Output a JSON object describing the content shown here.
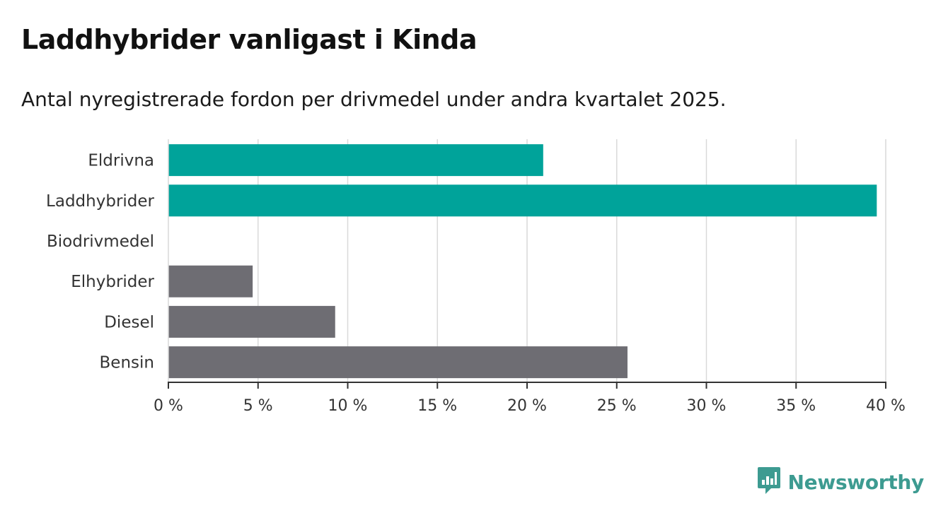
{
  "title": "Laddhybrider vanligast i Kinda",
  "subtitle": "Antal nyregistrerade fordon per drivmedel under andra kvartalet 2025.",
  "brand": {
    "name": "Newsworthy",
    "icon": "newsworthy-logo-icon",
    "color": "#3d9b91"
  },
  "colors": {
    "highlight": "#00a39a",
    "other": "#6e6d73",
    "grid": "#d9d9d9",
    "axis": "#333333"
  },
  "chart_data": {
    "type": "bar",
    "orientation": "horizontal",
    "categories": [
      "Eldrivna",
      "Laddhybrider",
      "Biodrivmedel",
      "Elhybrider",
      "Diesel",
      "Bensin"
    ],
    "values": [
      20.9,
      39.5,
      0,
      4.7,
      9.3,
      25.6
    ],
    "highlighted": [
      true,
      true,
      false,
      false,
      false,
      false
    ],
    "xlim": [
      0,
      40
    ],
    "xticks": [
      0,
      5,
      10,
      15,
      20,
      25,
      30,
      35,
      40
    ],
    "xtick_labels": [
      "0 %",
      "5 %",
      "10 %",
      "15 %",
      "20 %",
      "25 %",
      "30 %",
      "35 %",
      "40 %"
    ],
    "grid": "vertical"
  }
}
